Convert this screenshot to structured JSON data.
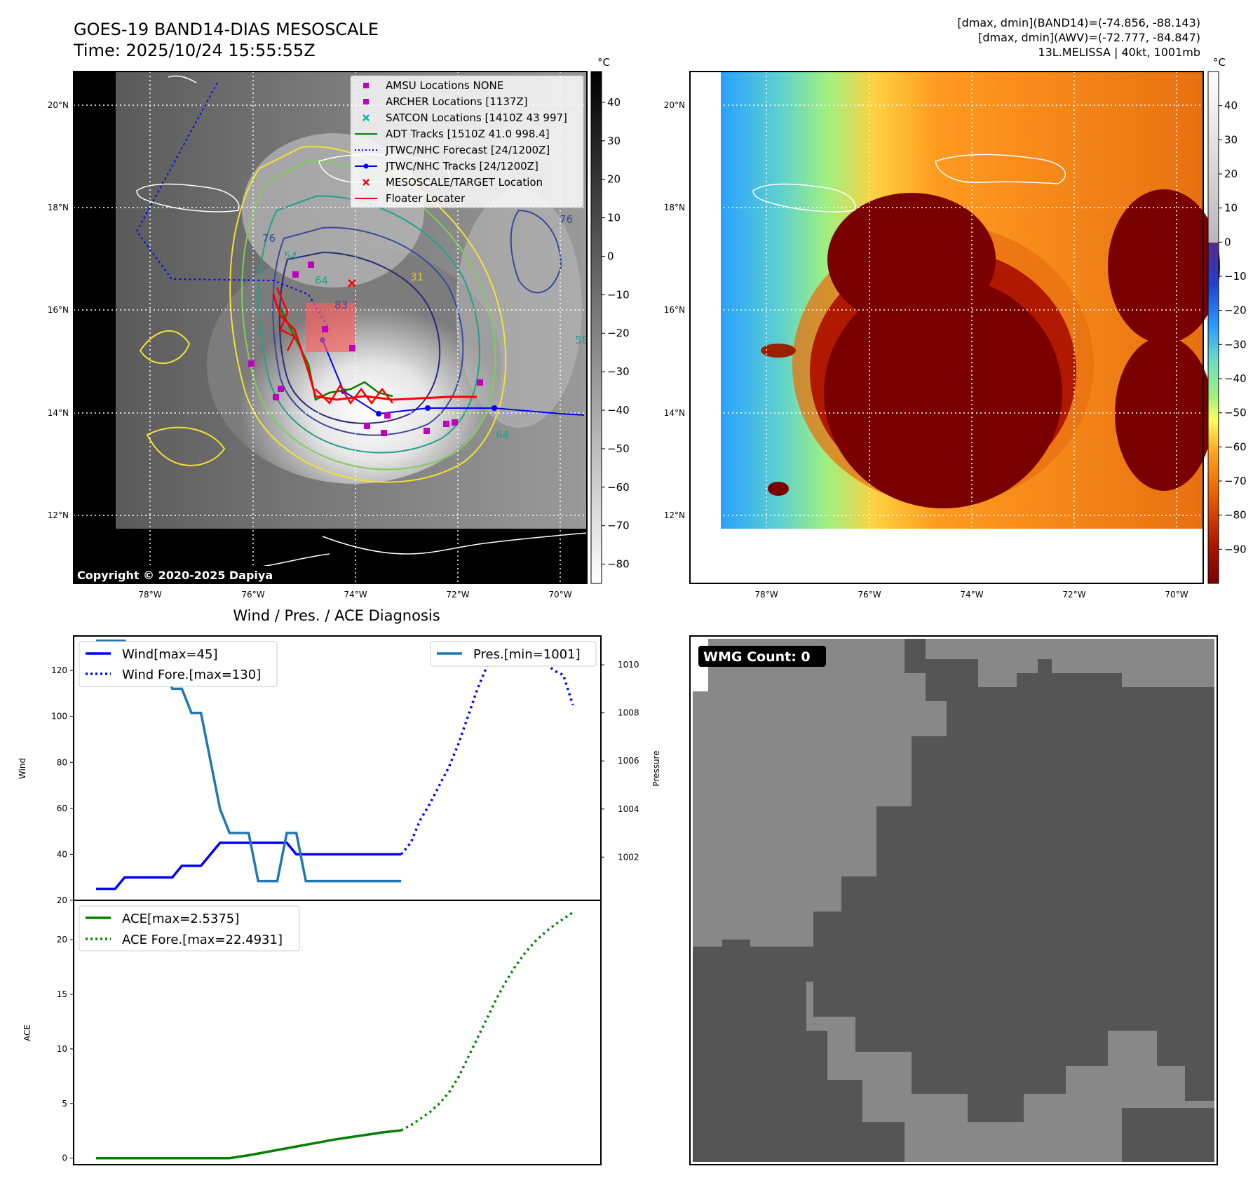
{
  "header": {
    "title": "GOES-19 BAND14-DIAS MESOSCALE",
    "time": "Time: 2025/10/24 15:55:55Z",
    "info_line1": "[dmax, dmin](BAND14)=(-74.856, -88.143)",
    "info_line2": "[dmax, dmin](AWV)=(-72.777, -84.847)",
    "info_line3": "13L.MELISSA | 40kt, 1001mb"
  },
  "map": {
    "lat_labels": [
      "20°N",
      "18°N",
      "16°N",
      "14°N",
      "12°N"
    ],
    "lon_labels": [
      "78°W",
      "76°W",
      "74°W",
      "72°W",
      "70°W"
    ],
    "copyright": "Copyright © 2020-2025 Dapiya",
    "contour_labels": [
      "76",
      "54",
      "64",
      "31",
      "83",
      "64",
      "76",
      "58"
    ]
  },
  "legend_map": {
    "items": [
      {
        "label": "AMSU Locations NONE",
        "color": "#c000c0",
        "marker": "square"
      },
      {
        "label": "ARCHER Locations [1137Z]",
        "color": "#c000c0",
        "marker": "square"
      },
      {
        "label": "SATCON Locations [1410Z 43 997]",
        "color": "#00b0b0",
        "marker": "x"
      },
      {
        "label": "ADT Tracks [1510Z 41.0 998.4]",
        "color": "#008000",
        "marker": "line"
      },
      {
        "label": "JTWC/NHC Forecast [24/1200Z]",
        "color": "#0000ff",
        "marker": "dotted"
      },
      {
        "label": "JTWC/NHC Tracks [24/1200Z]",
        "color": "#0000ff",
        "marker": "line-dot"
      },
      {
        "label": "MESOSCALE/TARGET Location",
        "color": "#ff0000",
        "marker": "x"
      },
      {
        "label": "Floater Locater",
        "color": "#ff0000",
        "marker": "line"
      }
    ]
  },
  "colorbar_left": {
    "unit": "°C",
    "ticks": [
      "40",
      "30",
      "20",
      "10",
      "0",
      "−10",
      "−20",
      "−30",
      "−40",
      "−50",
      "−60",
      "−70",
      "−80"
    ]
  },
  "colorbar_right": {
    "unit": "°C",
    "ticks": [
      "40",
      "30",
      "20",
      "10",
      "0",
      "−10",
      "−20",
      "−30",
      "−40",
      "−50",
      "−60",
      "−70",
      "−80",
      "−90"
    ]
  },
  "wmg": {
    "label": "WMG Count: 0"
  },
  "chart_data": [
    {
      "type": "line",
      "title": "Wind / Pres. / ACE Diagnosis",
      "ylabel": "Wind",
      "ylim": [
        20,
        135
      ],
      "yticks": [
        20,
        40,
        60,
        80,
        100,
        120
      ],
      "series": [
        {
          "name": "Wind[max=45]",
          "color": "#0000ff",
          "style": "solid",
          "axis": "left",
          "x": [
            0,
            1,
            2,
            3,
            4,
            5,
            6,
            7,
            8,
            9,
            10,
            11,
            12,
            13,
            14,
            15,
            16,
            17,
            18,
            19,
            20,
            21,
            22,
            23,
            24,
            25,
            26,
            27,
            28,
            29,
            30,
            31,
            32
          ],
          "values": [
            25,
            25,
            25,
            30,
            30,
            30,
            30,
            30,
            30,
            35,
            35,
            35,
            40,
            45,
            45,
            45,
            45,
            45,
            45,
            45,
            45,
            40,
            40,
            40,
            40,
            40,
            40,
            40,
            40,
            40,
            40,
            40,
            40
          ]
        },
        {
          "name": "Wind Fore.[max=130]",
          "color": "#0000ff",
          "style": "dotted",
          "axis": "left",
          "x": [
            32,
            33,
            34,
            35,
            36,
            37,
            38,
            39,
            40,
            41,
            42,
            43,
            44,
            45,
            46,
            47,
            48,
            49,
            50
          ],
          "values": [
            40,
            45,
            55,
            62,
            70,
            78,
            88,
            100,
            112,
            122,
            128,
            130,
            130,
            128,
            126,
            124,
            120,
            118,
            105
          ]
        },
        {
          "name": "Pres.[min=1001]",
          "color": "#1f77b4",
          "style": "solid",
          "axis": "right",
          "x": [
            0,
            1,
            2,
            3,
            4,
            5,
            6,
            7,
            8,
            9,
            10,
            11,
            12,
            13,
            14,
            15,
            16,
            17,
            18,
            19,
            20,
            21,
            22,
            23,
            24,
            25,
            26,
            27,
            28,
            29,
            30,
            31,
            32
          ],
          "values": [
            1011,
            1011,
            1011,
            1011,
            1010,
            1010,
            1010,
            1010,
            1009,
            1009,
            1008,
            1008,
            1006,
            1004,
            1003,
            1003,
            1003,
            1001,
            1001,
            1001,
            1003,
            1003,
            1001,
            1001,
            1001,
            1001,
            1001,
            1001,
            1001,
            1001,
            1001,
            1001,
            1001
          ]
        }
      ],
      "y2label": "Pressure",
      "y2lim": [
        1000.2,
        1011.2
      ],
      "y2ticks": [
        1002,
        1004,
        1006,
        1008,
        1010
      ]
    },
    {
      "type": "line",
      "ylabel": "ACE",
      "ylim": [
        -0.6,
        23.6
      ],
      "yticks": [
        0,
        5,
        10,
        15,
        20
      ],
      "series": [
        {
          "name": "ACE[max=2.5375]",
          "color": "#008000",
          "style": "solid",
          "x": [
            0,
            1,
            2,
            3,
            4,
            5,
            6,
            7,
            8,
            9,
            10,
            11,
            12,
            13,
            14,
            15,
            16,
            17,
            18,
            19,
            20,
            21,
            22,
            23,
            24,
            25,
            26,
            27,
            28,
            29,
            30,
            31,
            32
          ],
          "values": [
            0,
            0,
            0,
            0,
            0,
            0,
            0,
            0,
            0,
            0,
            0,
            0,
            0,
            0,
            0,
            0.13,
            0.26,
            0.42,
            0.58,
            0.74,
            0.9,
            1.06,
            1.22,
            1.38,
            1.54,
            1.7,
            1.83,
            1.96,
            2.09,
            2.22,
            2.35,
            2.45,
            2.5375
          ]
        },
        {
          "name": "ACE Fore.[max=22.4931]",
          "color": "#008000",
          "style": "dotted",
          "x": [
            32,
            33,
            34,
            35,
            36,
            37,
            38,
            39,
            40,
            41,
            42,
            43,
            44,
            45,
            46,
            47,
            48,
            49,
            50
          ],
          "values": [
            2.5375,
            3.0,
            3.6,
            4.2,
            5.0,
            6.0,
            7.4,
            9.2,
            11.0,
            12.8,
            14.6,
            16.2,
            17.6,
            18.8,
            19.8,
            20.6,
            21.3,
            21.9,
            22.4931
          ]
        }
      ]
    }
  ]
}
